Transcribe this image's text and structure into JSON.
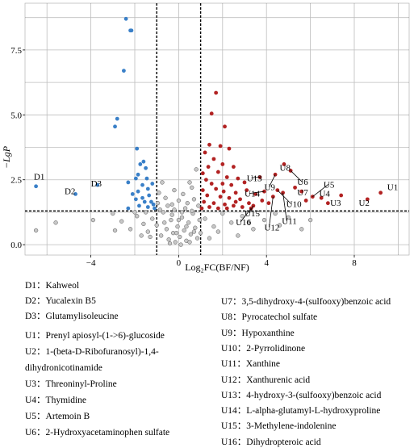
{
  "chart_data": {
    "type": "scatter",
    "title": "",
    "xlabel": "Log₂FC(BF/NF)",
    "ylabel": "−LgP",
    "xlim": [
      -7,
      10.5
    ],
    "ylim": [
      -0.4,
      9.3
    ],
    "xticks": [
      "−4",
      "0",
      "4",
      "8"
    ],
    "yticks": [
      "0.0",
      "2.5",
      "5.0",
      "7.5"
    ],
    "grid": true,
    "fc_threshold": [
      -1,
      1
    ],
    "p_threshold": 1.3,
    "colors": {
      "down": "#3a80c8",
      "up": "#b22222",
      "ns": "#c8c8c8"
    },
    "series": [
      {
        "key": "down",
        "points": [
          [
            -6.5,
            2.25
          ],
          [
            -4.7,
            1.95
          ],
          [
            -3.7,
            2.3
          ],
          [
            -2.4,
            8.7
          ],
          [
            -2.2,
            8.25
          ],
          [
            -2.15,
            8.25
          ],
          [
            -2.5,
            6.7
          ],
          [
            -2.8,
            4.85
          ],
          [
            -2.9,
            4.55
          ],
          [
            -1.9,
            3.7
          ],
          [
            -1.75,
            3.1
          ],
          [
            -1.6,
            3.2
          ],
          [
            -1.5,
            2.95
          ],
          [
            -1.85,
            2.7
          ],
          [
            -1.95,
            2.55
          ],
          [
            -1.45,
            2.55
          ],
          [
            -2.3,
            2.4
          ],
          [
            -1.2,
            2.35
          ],
          [
            -1.65,
            2.3
          ],
          [
            -1.4,
            2.15
          ],
          [
            -1.85,
            2.05
          ],
          [
            -2.1,
            1.95
          ],
          [
            -1.35,
            1.9
          ],
          [
            -1.65,
            1.8
          ],
          [
            -1.95,
            1.75
          ],
          [
            -1.25,
            1.65
          ],
          [
            -1.55,
            1.65
          ],
          [
            -1.15,
            1.55
          ],
          [
            -1.4,
            1.45
          ],
          [
            -1.8,
            1.5
          ],
          [
            -2.3,
            1.4
          ],
          [
            -1.1,
            1.4
          ]
        ]
      },
      {
        "key": "up",
        "points": [
          [
            9.2,
            2.0
          ],
          [
            8.6,
            1.75
          ],
          [
            7.4,
            1.9
          ],
          [
            6.8,
            1.6
          ],
          [
            6.5,
            1.8
          ],
          [
            6.1,
            1.85
          ],
          [
            5.8,
            1.7
          ],
          [
            5.6,
            2.05
          ],
          [
            5.3,
            2.2
          ],
          [
            5.1,
            2.85
          ],
          [
            4.8,
            3.1
          ],
          [
            4.75,
            2.0
          ],
          [
            4.5,
            2.1
          ],
          [
            4.3,
            1.85
          ],
          [
            4.1,
            1.6
          ],
          [
            3.9,
            2.05
          ],
          [
            3.8,
            1.7
          ],
          [
            3.5,
            1.95
          ],
          [
            3.4,
            1.5
          ],
          [
            3.3,
            1.4
          ],
          [
            3.7,
            2.6
          ],
          [
            4.4,
            2.7
          ],
          [
            1.7,
            5.85
          ],
          [
            1.5,
            5.05
          ],
          [
            2.1,
            4.55
          ],
          [
            1.4,
            3.85
          ],
          [
            1.9,
            3.8
          ],
          [
            2.3,
            3.7
          ],
          [
            1.2,
            3.55
          ],
          [
            1.6,
            3.3
          ],
          [
            2.0,
            3.1
          ],
          [
            1.35,
            3.0
          ],
          [
            2.5,
            3.0
          ],
          [
            1.1,
            2.75
          ],
          [
            1.8,
            2.8
          ],
          [
            2.2,
            2.6
          ],
          [
            2.7,
            2.55
          ],
          [
            1.25,
            2.5
          ],
          [
            1.5,
            2.35
          ],
          [
            2.0,
            2.35
          ],
          [
            2.4,
            2.3
          ],
          [
            3.0,
            2.4
          ],
          [
            1.1,
            2.1
          ],
          [
            1.7,
            2.15
          ],
          [
            2.05,
            2.05
          ],
          [
            2.6,
            2.0
          ],
          [
            3.1,
            2.1
          ],
          [
            1.3,
            1.9
          ],
          [
            1.9,
            1.85
          ],
          [
            2.3,
            1.8
          ],
          [
            2.8,
            1.75
          ],
          [
            1.15,
            1.65
          ],
          [
            1.6,
            1.6
          ],
          [
            2.1,
            1.55
          ],
          [
            2.5,
            1.5
          ],
          [
            2.9,
            1.45
          ],
          [
            1.4,
            1.45
          ],
          [
            1.8,
            1.4
          ],
          [
            2.2,
            1.4
          ],
          [
            3.2,
            1.6
          ],
          [
            1.05,
            1.4
          ],
          [
            2.6,
            1.65
          ]
        ]
      },
      {
        "key": "ns",
        "points": [
          [
            -6.5,
            0.55
          ],
          [
            -5.6,
            0.85
          ],
          [
            -3.9,
            0.95
          ],
          [
            -3.0,
            1.2
          ],
          [
            -2.6,
            0.9
          ],
          [
            -2.2,
            0.6
          ],
          [
            -1.9,
            1.1
          ],
          [
            -1.6,
            0.8
          ],
          [
            -1.4,
            0.5
          ],
          [
            -1.2,
            1.0
          ],
          [
            -1.0,
            0.75
          ],
          [
            -0.8,
            0.35
          ],
          [
            -0.7,
            1.25
          ],
          [
            -0.55,
            0.6
          ],
          [
            -0.45,
            0.2
          ],
          [
            -0.35,
            0.95
          ],
          [
            -0.25,
            0.45
          ],
          [
            -0.15,
            0.1
          ],
          [
            -0.05,
            0.7
          ],
          [
            0.05,
            0.3
          ],
          [
            0.15,
            1.05
          ],
          [
            0.25,
            0.55
          ],
          [
            0.35,
            0.15
          ],
          [
            0.45,
            0.85
          ],
          [
            0.55,
            0.4
          ],
          [
            0.65,
            1.2
          ],
          [
            0.75,
            0.65
          ],
          [
            0.85,
            0.25
          ],
          [
            0.95,
            0.95
          ],
          [
            -0.9,
            2.0
          ],
          [
            -0.6,
            1.8
          ],
          [
            -0.3,
            1.55
          ],
          [
            0.0,
            1.7
          ],
          [
            0.2,
            1.95
          ],
          [
            0.4,
            1.6
          ],
          [
            0.6,
            2.2
          ],
          [
            0.8,
            2.9
          ],
          [
            0.7,
            1.75
          ],
          [
            -0.75,
            2.4
          ],
          [
            -0.5,
            1.5
          ],
          [
            -0.2,
            1.35
          ],
          [
            0.3,
            1.4
          ],
          [
            0.9,
            1.5
          ],
          [
            -0.95,
            1.6
          ],
          [
            1.2,
            1.0
          ],
          [
            1.6,
            0.7
          ],
          [
            2.0,
            1.2
          ],
          [
            2.4,
            0.85
          ],
          [
            2.9,
            1.1
          ],
          [
            3.4,
            0.6
          ],
          [
            3.9,
            0.95
          ],
          [
            4.4,
            1.2
          ],
          [
            5.0,
            1.05
          ],
          [
            5.6,
            0.6
          ],
          [
            -1.3,
            0.3
          ],
          [
            -0.4,
            0.05
          ],
          [
            0.1,
            0.0
          ],
          [
            0.5,
            0.1
          ],
          [
            1.0,
            0.45
          ],
          [
            1.4,
            0.25
          ],
          [
            -1.7,
            0.35
          ],
          [
            -0.65,
            0.85
          ],
          [
            0.35,
            0.7
          ],
          [
            -0.1,
            0.45
          ],
          [
            0.7,
            0.5
          ],
          [
            -0.85,
            1.35
          ],
          [
            -0.3,
            1.15
          ],
          [
            0.15,
            1.25
          ],
          [
            0.6,
            1.3
          ],
          [
            -2.0,
            1.25
          ],
          [
            -2.9,
            0.55
          ],
          [
            -1.5,
            1.25
          ],
          [
            0.0,
            0.95
          ],
          [
            -0.2,
            2.1
          ],
          [
            0.5,
            2.4
          ],
          [
            2.7,
            0.35
          ],
          [
            1.8,
            0.5
          ],
          [
            4.6,
            0.75
          ],
          [
            3.2,
            0.85
          ],
          [
            6.0,
            0.95
          ]
        ]
      }
    ],
    "annotations": [
      {
        "label": "D1",
        "point": [
          -6.5,
          2.25
        ],
        "text_at": [
          -6.6,
          2.5
        ]
      },
      {
        "label": "D2",
        "point": [
          -4.7,
          1.95
        ],
        "text_at": [
          -5.2,
          1.95
        ]
      },
      {
        "label": "D3",
        "point": [
          -3.7,
          2.3
        ],
        "text_at": [
          -4.0,
          2.25
        ]
      },
      {
        "label": "U1",
        "point": [
          9.2,
          2.0
        ],
        "text_at": [
          9.5,
          2.1
        ]
      },
      {
        "label": "U2",
        "point": [
          8.6,
          1.75
        ],
        "text_at": [
          8.2,
          1.5
        ]
      },
      {
        "label": "U3",
        "point": [
          6.8,
          1.6
        ],
        "text_at": [
          6.9,
          1.5
        ]
      },
      {
        "label": "U4",
        "point": [
          6.5,
          1.8
        ],
        "text_at": [
          6.4,
          1.85
        ]
      },
      {
        "label": "U5",
        "point": [
          6.1,
          1.85
        ],
        "text_at": [
          6.6,
          2.2
        ]
      },
      {
        "label": "U6",
        "point": [
          5.1,
          2.85
        ],
        "text_at": [
          5.4,
          2.3
        ]
      },
      {
        "label": "U7",
        "point": [
          5.6,
          2.05
        ],
        "text_at": [
          5.4,
          1.9
        ]
      },
      {
        "label": "U8",
        "point": [
          4.8,
          3.1
        ],
        "text_at": [
          4.6,
          2.85
        ]
      },
      {
        "label": "U9",
        "point": [
          4.4,
          2.7
        ],
        "text_at": [
          3.9,
          2.1
        ]
      },
      {
        "label": "U10",
        "point": [
          4.5,
          2.1
        ],
        "text_at": [
          4.9,
          1.45
        ]
      },
      {
        "label": "U11",
        "point": [
          4.75,
          2.0
        ],
        "text_at": [
          4.7,
          0.8
        ]
      },
      {
        "label": "U12",
        "point": [
          4.3,
          1.85
        ],
        "text_at": [
          3.9,
          0.55
        ]
      },
      {
        "label": "U13",
        "point": [
          3.7,
          2.6
        ],
        "text_at": [
          3.1,
          2.45
        ]
      },
      {
        "label": "U14",
        "point": [
          3.9,
          2.05
        ],
        "text_at": [
          3.0,
          1.85
        ]
      },
      {
        "label": "U15",
        "point": [
          3.4,
          1.5
        ],
        "text_at": [
          3.0,
          1.1
        ]
      },
      {
        "label": "U16",
        "point": [
          3.3,
          1.4
        ],
        "text_at": [
          2.6,
          0.75
        ]
      }
    ]
  },
  "legend": {
    "down": [
      "D1：Kahweol",
      "D2：Yucalexin B5",
      "D3：Glutamylisoleucine"
    ],
    "up_left": [
      "U1：Prenyl apiosyl-(1->6)-glucoside",
      "U2：1-(beta-D-Ribofuranosyl)-1,4-",
      "dihydronicotinamide",
      "U3：Threoninyl-Proline",
      "U4：Thymidine",
      "U5：Artemoin B",
      "U6：2-Hydroxyacetaminophen sulfate"
    ],
    "up_right": [
      "U7：3,5-dihydroxy-4-(sulfooxy)benzoic acid",
      "U8：Pyrocatechol sulfate",
      "U9：Hypoxanthine",
      "U10：2-Pyrrolidinone",
      "U11：Xanthine",
      "U12：Xanthurenic acid",
      "U13：4-hydroxy-3-(sulfooxy)benzoic acid",
      "U14：L-alpha-glutamyl-L-hydroxyproline",
      "U15：3-Methylene-indolenine",
      "U16：Dihydropteroic acid"
    ]
  }
}
